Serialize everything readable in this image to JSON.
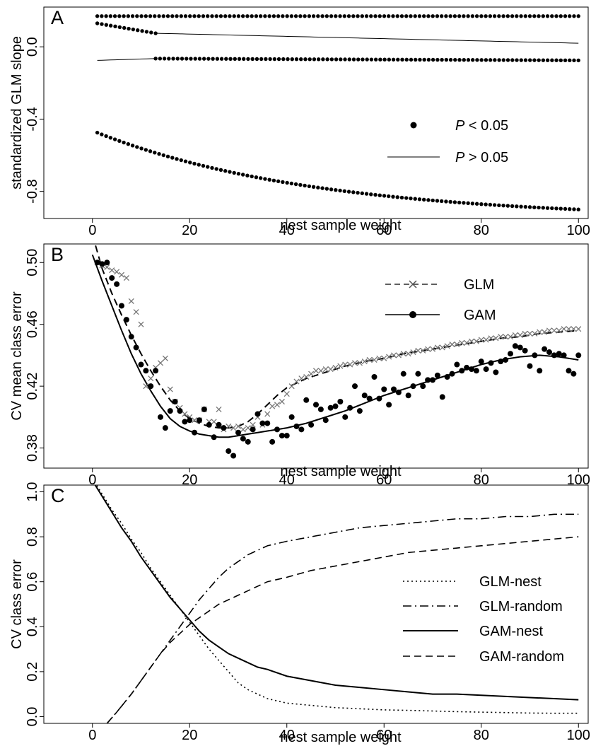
{
  "chart_data": [
    {
      "type": "scatter",
      "panel_label": "A",
      "xlabel": "nest sample weight",
      "ylabel": "standardized GLM slope",
      "xlim": [
        -10,
        102
      ],
      "ylim": [
        -0.95,
        0.22
      ],
      "xticks": [
        0,
        20,
        40,
        60,
        80,
        100
      ],
      "xtick_labels": [
        "0",
        "20",
        "40",
        "60",
        "80",
        "100"
      ],
      "yticks": [
        -0.8,
        -0.4,
        0.0
      ],
      "ytick_labels": [
        "-0.8",
        "-0.4",
        "0.0"
      ],
      "grid": false,
      "legend_position": "right",
      "legend": [
        {
          "label_italic": "P",
          "label": "< 0.05",
          "style": "points"
        },
        {
          "label_italic": "P",
          "label": "> 0.05",
          "style": "line"
        }
      ],
      "series": [
        {
          "style": "points",
          "x_range": [
            1,
            100
          ],
          "y_start": 0.17,
          "y_end": 0.17
        },
        {
          "style": "points",
          "x_range": [
            1,
            13
          ],
          "y_start": 0.13,
          "y_end": 0.075
        },
        {
          "style": "line",
          "x_range": [
            13,
            100
          ],
          "y_start": 0.075,
          "y_end": 0.02
        },
        {
          "style": "line",
          "x_range": [
            1,
            13
          ],
          "y_start": -0.075,
          "y_end": -0.065
        },
        {
          "style": "points",
          "x_range": [
            13,
            100
          ],
          "y_start": -0.065,
          "y_end": -0.075
        },
        {
          "style": "points",
          "x_range": [
            1,
            100
          ],
          "y_start": -0.475,
          "y_end": -0.9
        }
      ]
    },
    {
      "type": "line",
      "panel_label": "B",
      "xlabel": "nest sample weight",
      "ylabel": "CV mean class error",
      "xlim": [
        -10,
        102
      ],
      "ylim": [
        0.367,
        0.512
      ],
      "xticks": [
        0,
        20,
        40,
        60,
        80,
        100
      ],
      "xtick_labels": [
        "0",
        "20",
        "40",
        "60",
        "80",
        "100"
      ],
      "yticks": [
        0.38,
        0.42,
        0.46,
        0.5
      ],
      "ytick_labels": [
        "0.38",
        "0.42",
        "0.46",
        "0.50"
      ],
      "grid": false,
      "legend_position": "top-right",
      "series": [
        {
          "name": "GLM",
          "marker": "x",
          "line": "dashed",
          "x": [
            1,
            2,
            3,
            4,
            5,
            6,
            7,
            8,
            9,
            10,
            11,
            12,
            13,
            14,
            15,
            16,
            17,
            18,
            19,
            20,
            21,
            22,
            23,
            24,
            25,
            26,
            27,
            28,
            29,
            30,
            31,
            32,
            33,
            34,
            35,
            36,
            37,
            38,
            39,
            40,
            41,
            42,
            43,
            44,
            45,
            46,
            47,
            48,
            49,
            50,
            51,
            52,
            53,
            54,
            55,
            56,
            57,
            58,
            59,
            60,
            61,
            62,
            63,
            64,
            65,
            66,
            67,
            68,
            69,
            70,
            71,
            72,
            73,
            74,
            75,
            76,
            77,
            78,
            79,
            80,
            81,
            82,
            83,
            84,
            85,
            86,
            87,
            88,
            89,
            90,
            91,
            92,
            93,
            94,
            95,
            96,
            97,
            98,
            99,
            100
          ],
          "y": [
            0.5,
            0.498,
            0.497,
            0.495,
            0.494,
            0.492,
            0.49,
            0.475,
            0.468,
            0.46,
            0.42,
            0.425,
            0.432,
            0.435,
            0.438,
            0.418,
            0.41,
            0.406,
            0.402,
            0.4,
            0.398,
            0.398,
            0.405,
            0.397,
            0.397,
            0.405,
            0.392,
            0.394,
            0.393,
            0.394,
            0.392,
            0.393,
            0.395,
            0.4,
            0.395,
            0.402,
            0.407,
            0.408,
            0.41,
            0.415,
            0.42,
            0.423,
            0.425,
            0.426,
            0.428,
            0.43,
            0.43,
            0.431,
            0.431,
            0.432,
            0.433,
            0.434,
            0.434,
            0.435,
            0.435,
            0.436,
            0.437,
            0.437,
            0.438,
            0.438,
            0.439,
            0.44,
            0.44,
            0.441,
            0.441,
            0.442,
            0.443,
            0.443,
            0.444,
            0.444,
            0.445,
            0.445,
            0.446,
            0.447,
            0.447,
            0.448,
            0.448,
            0.449,
            0.449,
            0.45,
            0.45,
            0.451,
            0.451,
            0.452,
            0.452,
            0.452,
            0.453,
            0.453,
            0.454,
            0.454,
            0.454,
            0.455,
            0.455,
            0.456,
            0.456,
            0.456,
            0.457,
            0.457,
            0.457,
            0.457
          ],
          "fit_x": [
            0,
            2,
            4,
            6,
            8,
            10,
            12,
            14,
            16,
            18,
            20,
            22,
            24,
            26,
            28,
            30,
            32,
            34,
            36,
            38,
            40,
            44,
            48,
            52,
            56,
            60,
            64,
            68,
            72,
            76,
            80,
            84,
            88,
            92,
            96,
            100
          ],
          "fit_y": [
            0.518,
            0.496,
            0.48,
            0.466,
            0.453,
            0.441,
            0.43,
            0.42,
            0.411,
            0.404,
            0.399,
            0.396,
            0.394,
            0.393,
            0.393,
            0.394,
            0.397,
            0.402,
            0.408,
            0.414,
            0.419,
            0.425,
            0.429,
            0.433,
            0.436,
            0.438,
            0.441,
            0.443,
            0.445,
            0.447,
            0.449,
            0.451,
            0.452,
            0.454,
            0.455,
            0.456
          ]
        },
        {
          "name": "GAM",
          "marker": "circle",
          "line": "solid",
          "x": [
            1,
            2,
            3,
            4,
            5,
            6,
            7,
            8,
            9,
            10,
            11,
            12,
            13,
            14,
            15,
            16,
            17,
            18,
            19,
            20,
            21,
            22,
            23,
            24,
            25,
            26,
            27,
            28,
            29,
            30,
            31,
            32,
            33,
            34,
            35,
            36,
            37,
            38,
            39,
            40,
            41,
            42,
            43,
            44,
            45,
            46,
            47,
            48,
            49,
            50,
            51,
            52,
            53,
            54,
            55,
            56,
            57,
            58,
            59,
            60,
            61,
            62,
            63,
            64,
            65,
            66,
            67,
            68,
            69,
            70,
            71,
            72,
            73,
            74,
            75,
            76,
            77,
            78,
            79,
            80,
            81,
            82,
            83,
            84,
            85,
            86,
            87,
            88,
            89,
            90,
            91,
            92,
            93,
            94,
            95,
            96,
            97,
            98,
            99,
            100
          ],
          "y": [
            0.5,
            0.499,
            0.5,
            0.49,
            0.486,
            0.472,
            0.463,
            0.452,
            0.445,
            0.434,
            0.43,
            0.42,
            0.43,
            0.4,
            0.393,
            0.404,
            0.41,
            0.404,
            0.397,
            0.398,
            0.39,
            0.398,
            0.405,
            0.395,
            0.387,
            0.395,
            0.393,
            0.378,
            0.375,
            0.39,
            0.386,
            0.384,
            0.392,
            0.402,
            0.396,
            0.396,
            0.384,
            0.392,
            0.388,
            0.388,
            0.4,
            0.394,
            0.392,
            0.411,
            0.395,
            0.408,
            0.405,
            0.398,
            0.406,
            0.407,
            0.41,
            0.4,
            0.406,
            0.42,
            0.404,
            0.414,
            0.412,
            0.426,
            0.412,
            0.418,
            0.408,
            0.418,
            0.416,
            0.428,
            0.414,
            0.42,
            0.428,
            0.42,
            0.424,
            0.424,
            0.427,
            0.413,
            0.426,
            0.428,
            0.434,
            0.43,
            0.432,
            0.431,
            0.43,
            0.436,
            0.431,
            0.435,
            0.429,
            0.436,
            0.437,
            0.441,
            0.446,
            0.445,
            0.443,
            0.433,
            0.44,
            0.43,
            0.444,
            0.442,
            0.44,
            0.441,
            0.44,
            0.43,
            0.428,
            0.44
          ],
          "fit_x": [
            0,
            2,
            4,
            6,
            8,
            10,
            12,
            14,
            16,
            18,
            20,
            22,
            24,
            26,
            28,
            30,
            32,
            34,
            36,
            38,
            40,
            44,
            48,
            52,
            56,
            60,
            64,
            68,
            72,
            76,
            80,
            84,
            88,
            92,
            96,
            100
          ],
          "fit_y": [
            0.505,
            0.488,
            0.472,
            0.456,
            0.441,
            0.428,
            0.417,
            0.407,
            0.399,
            0.394,
            0.391,
            0.389,
            0.388,
            0.387,
            0.387,
            0.388,
            0.389,
            0.39,
            0.391,
            0.392,
            0.393,
            0.396,
            0.4,
            0.404,
            0.409,
            0.414,
            0.418,
            0.422,
            0.426,
            0.43,
            0.434,
            0.437,
            0.439,
            0.44,
            0.439,
            0.437
          ]
        }
      ]
    },
    {
      "type": "line",
      "panel_label": "C",
      "xlabel": "nest sample weight",
      "ylabel": "CV class error",
      "xlim": [
        -10,
        102
      ],
      "ylim": [
        -0.03,
        1.03
      ],
      "xticks": [
        0,
        20,
        40,
        60,
        80,
        100
      ],
      "xtick_labels": [
        "0",
        "20",
        "40",
        "60",
        "80",
        "100"
      ],
      "yticks": [
        0.0,
        0.2,
        0.4,
        0.6,
        0.8,
        1.0
      ],
      "ytick_labels": [
        "0.0",
        "0.2",
        "0.4",
        "0.6",
        "0.8",
        "1.0"
      ],
      "grid": false,
      "legend_position": "right",
      "series": [
        {
          "name": "GLM-nest",
          "line": "dotted",
          "x": [
            0,
            2,
            4,
            6,
            8,
            10,
            12,
            14,
            16,
            18,
            20,
            22,
            24,
            26,
            28,
            30,
            32,
            34,
            36,
            40,
            45,
            50,
            55,
            60,
            65,
            70,
            75,
            80,
            85,
            90,
            95,
            100
          ],
          "y": [
            1.06,
            0.99,
            0.92,
            0.86,
            0.79,
            0.73,
            0.66,
            0.6,
            0.54,
            0.48,
            0.42,
            0.36,
            0.3,
            0.25,
            0.2,
            0.15,
            0.12,
            0.1,
            0.08,
            0.06,
            0.05,
            0.04,
            0.035,
            0.03,
            0.028,
            0.025,
            0.022,
            0.02,
            0.018,
            0.016,
            0.015,
            0.015
          ]
        },
        {
          "name": "GLM-random",
          "line": "dashdot",
          "x": [
            3,
            5,
            8,
            10,
            12,
            14,
            16,
            18,
            20,
            22,
            24,
            26,
            28,
            30,
            32,
            34,
            36,
            40,
            45,
            50,
            55,
            60,
            65,
            70,
            75,
            80,
            85,
            90,
            95,
            100
          ],
          "y": [
            -0.03,
            0.02,
            0.1,
            0.16,
            0.22,
            0.28,
            0.34,
            0.4,
            0.46,
            0.52,
            0.57,
            0.62,
            0.66,
            0.69,
            0.72,
            0.74,
            0.76,
            0.78,
            0.8,
            0.82,
            0.84,
            0.85,
            0.86,
            0.87,
            0.88,
            0.88,
            0.89,
            0.89,
            0.9,
            0.9
          ]
        },
        {
          "name": "GAM-nest",
          "line": "solid",
          "x": [
            0,
            2,
            4,
            6,
            8,
            10,
            12,
            14,
            16,
            18,
            20,
            22,
            24,
            26,
            28,
            30,
            32,
            34,
            36,
            40,
            45,
            50,
            55,
            60,
            65,
            70,
            75,
            80,
            85,
            90,
            95,
            100
          ],
          "y": [
            1.05,
            0.98,
            0.91,
            0.84,
            0.78,
            0.71,
            0.65,
            0.59,
            0.53,
            0.48,
            0.43,
            0.38,
            0.34,
            0.31,
            0.28,
            0.26,
            0.24,
            0.22,
            0.21,
            0.18,
            0.16,
            0.14,
            0.13,
            0.12,
            0.11,
            0.1,
            0.1,
            0.095,
            0.09,
            0.085,
            0.08,
            0.075
          ]
        },
        {
          "name": "GAM-random",
          "line": "dashed",
          "x": [
            3,
            5,
            8,
            10,
            12,
            14,
            16,
            18,
            20,
            22,
            24,
            26,
            28,
            30,
            32,
            34,
            36,
            40,
            45,
            50,
            55,
            60,
            65,
            70,
            75,
            80,
            85,
            90,
            95,
            100
          ],
          "y": [
            -0.03,
            0.02,
            0.1,
            0.16,
            0.22,
            0.28,
            0.33,
            0.37,
            0.41,
            0.44,
            0.47,
            0.5,
            0.52,
            0.54,
            0.56,
            0.58,
            0.6,
            0.62,
            0.65,
            0.67,
            0.69,
            0.71,
            0.73,
            0.74,
            0.75,
            0.76,
            0.77,
            0.78,
            0.79,
            0.8
          ]
        }
      ]
    }
  ]
}
